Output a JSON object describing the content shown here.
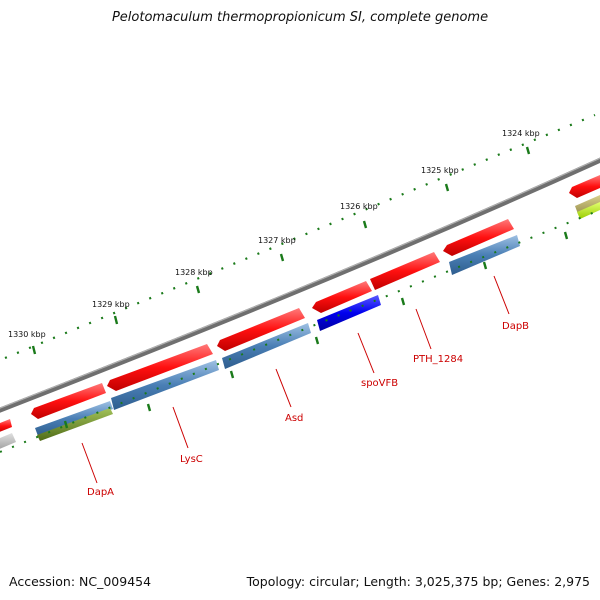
{
  "title": "Pelotomaculum thermopropionicum SI, complete genome",
  "accession": "Accession: NC_009454",
  "summary": "Topology: circular; Length: 3,025,375 bp; Genes: 2,975",
  "kbp_ticks": [
    "1330 kbp",
    "1329 kbp",
    "1328 kbp",
    "1327 kbp",
    "1326 kbp",
    "1325 kbp",
    "1324 kbp"
  ],
  "gene_labels": [
    "DapA",
    "LysC",
    "Asd",
    "spoVFB",
    "PTH_1284",
    "DapB"
  ],
  "colors": {
    "backbone": "#7a7a7a",
    "cds": "#ff1a1a",
    "blue_track": "#4a7fb5",
    "highlight": "#0000ee",
    "olive": "#6b8e23",
    "ticks": "#1a7a1a",
    "label": "#cc0000"
  }
}
